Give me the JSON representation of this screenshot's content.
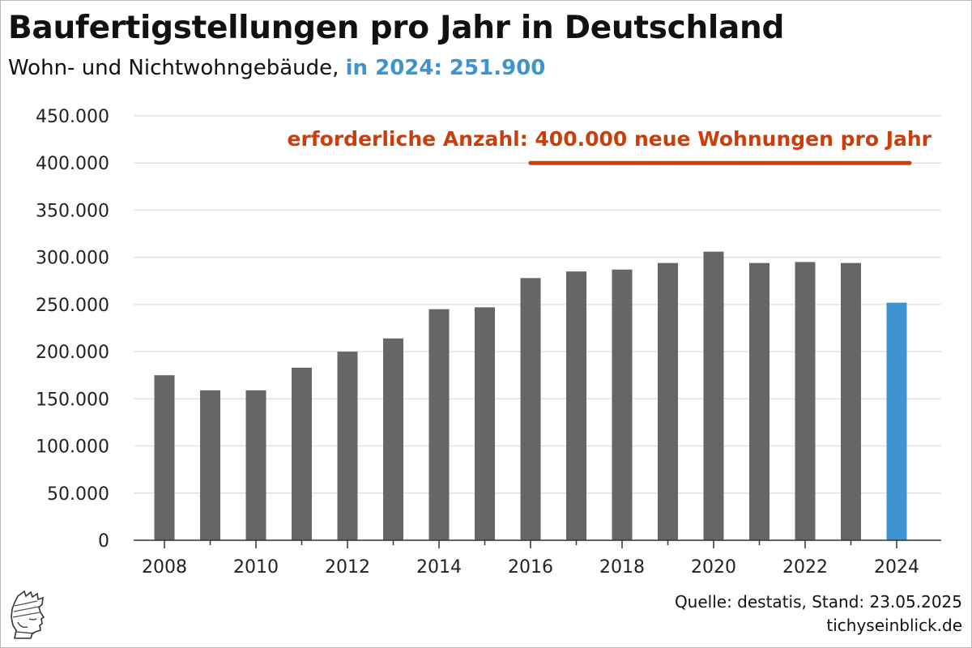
{
  "header": {
    "title": "Baufertigstellungen pro Jahr in Deutschland",
    "subtitle_prefix": "Wohn- und Nichtwohngebäude,",
    "subtitle_highlight": "in 2024: 251.900"
  },
  "footer": {
    "source": "Quelle: destatis, Stand: 23.05.2025",
    "site": "tichyseinblick.de"
  },
  "logo": {
    "icon": "profile-head-logo-icon"
  },
  "colors": {
    "bar": "#666666",
    "highlight_bar": "#3d94cf",
    "annotation": "#cc3d0a",
    "grid": "#e2e2e2",
    "axis": "#333333"
  },
  "chart_data": {
    "type": "bar",
    "title": "Baufertigstellungen pro Jahr in Deutschland",
    "subtitle": "Wohn- und Nichtwohngebäude, in 2024: 251.900",
    "xlabel": "",
    "ylabel": "",
    "categories": [
      "2008",
      "2009",
      "2010",
      "2011",
      "2012",
      "2013",
      "2014",
      "2015",
      "2016",
      "2017",
      "2018",
      "2019",
      "2020",
      "2021",
      "2022",
      "2023",
      "2024"
    ],
    "values": [
      175000,
      159000,
      159000,
      183000,
      200000,
      214000,
      245000,
      247000,
      278000,
      285000,
      287000,
      294000,
      306000,
      294000,
      295000,
      294000,
      251900
    ],
    "highlight_category": "2024",
    "x_tick_labels": [
      "2008",
      "2010",
      "2012",
      "2014",
      "2016",
      "2018",
      "2020",
      "2022",
      "2024"
    ],
    "y_ticks": [
      0,
      50000,
      100000,
      150000,
      200000,
      250000,
      300000,
      350000,
      400000,
      450000
    ],
    "y_tick_labels": [
      "0",
      "50.000",
      "100.000",
      "150.000",
      "200.000",
      "250.000",
      "300.000",
      "350.000",
      "400.000",
      "450.000"
    ],
    "ylim": [
      0,
      450000
    ],
    "grid": true,
    "reference_line": {
      "value": 400000,
      "x_start": "2016",
      "x_end": "2024",
      "label": "erforderliche Anzahl: 400.000 neue Wohnungen pro Jahr"
    }
  }
}
